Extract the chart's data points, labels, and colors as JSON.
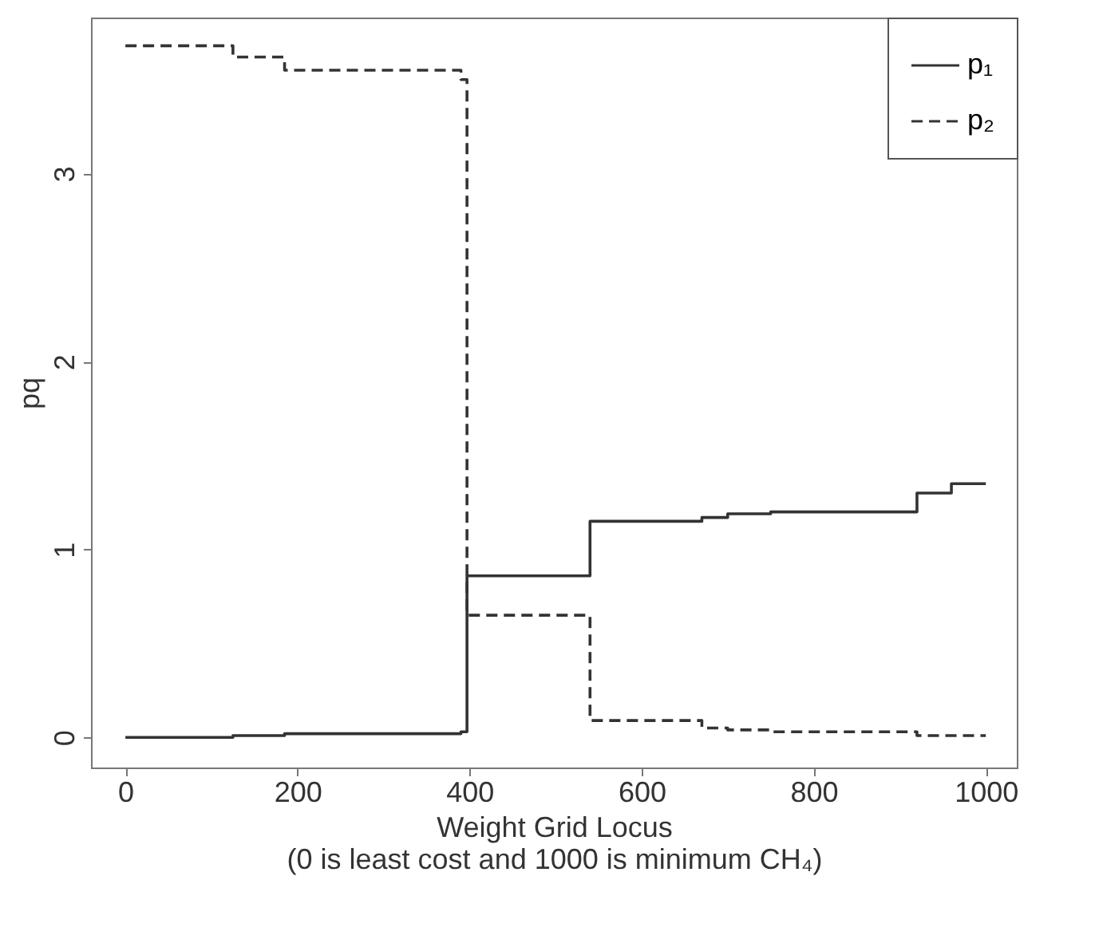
{
  "chart_data": {
    "type": "step",
    "xlabel": "Weight Grid Locus\n(0 is least cost and 1000 is minimum CH₄)",
    "ylabel": "pq",
    "xlim": [
      -40,
      1036
    ],
    "ylim": [
      -0.16,
      3.83
    ],
    "xticks": [
      0,
      200,
      400,
      600,
      800,
      1000
    ],
    "yticks": [
      0,
      1,
      2,
      3
    ],
    "grid": false,
    "legend": "top right",
    "series": [
      {
        "name": "p₁",
        "color": "#333333",
        "line_style": "solid",
        "x": [
          0,
          125,
          185,
          390,
          397,
          540,
          670,
          700,
          750,
          920,
          960,
          1000
        ],
        "values": [
          0,
          0.01,
          0.02,
          0.03,
          0.86,
          1.15,
          1.17,
          1.19,
          1.2,
          1.3,
          1.35,
          1.35
        ]
      },
      {
        "name": "p₂",
        "color": "#333333",
        "line_style": "dashed",
        "x": [
          0,
          125,
          185,
          390,
          397,
          540,
          670,
          700,
          750,
          920,
          1000
        ],
        "values": [
          3.68,
          3.62,
          3.55,
          3.5,
          0.65,
          0.09,
          0.05,
          0.04,
          0.03,
          0.01,
          0.01
        ]
      }
    ]
  }
}
